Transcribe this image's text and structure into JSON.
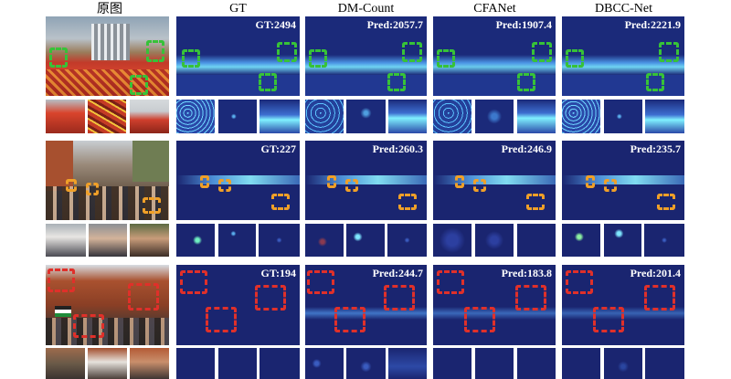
{
  "headers": {
    "original": "原图",
    "gt": "GT",
    "dm_count": "DM-Count",
    "cfanet": "CFANet",
    "dbcc_net": "DBCC-Net"
  },
  "rows": [
    {
      "gt": "GT:2494",
      "dm_count": "Pred:2057.7",
      "cfanet": "Pred:1907.4",
      "dbcc_net": "Pred:2221.9",
      "box_color": "#37c238"
    },
    {
      "gt": "GT:227",
      "dm_count": "Pred:260.3",
      "cfanet": "Pred:246.9",
      "dbcc_net": "Pred:235.7",
      "box_color": "#f0a028"
    },
    {
      "gt": "GT:194",
      "dm_count": "Pred:244.7",
      "cfanet": "Pred:183.8",
      "dbcc_net": "Pred:201.4",
      "box_color": "#e0302a"
    }
  ],
  "colors": {
    "density_background": "#1b2a7a",
    "density_hot": "#7ff0ff"
  }
}
